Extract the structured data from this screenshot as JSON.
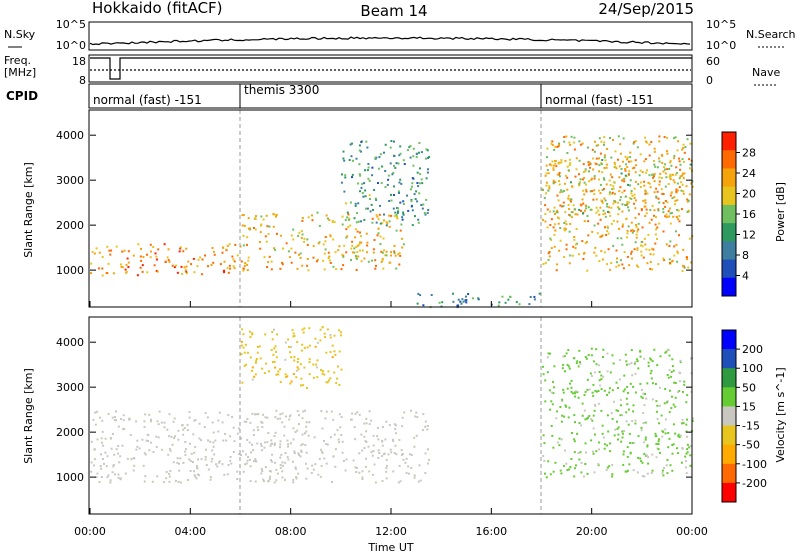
{
  "header": {
    "title": "Hokkaido (fitACF)",
    "beam": "Beam 14",
    "date": "24/Sep/2015"
  },
  "noise_panel": {
    "left_label": "N.Sky",
    "right_label": "N.Search",
    "left_ticks": [
      "10^5",
      "10^0"
    ],
    "right_ticks": [
      "10^5",
      "10^0"
    ]
  },
  "freq_panel": {
    "left_label_1": "Freq.",
    "left_label_2": "[MHz]",
    "right_label": "Nave",
    "left_ticks": [
      "18",
      "8"
    ],
    "right_ticks": [
      "60",
      "0"
    ]
  },
  "cpid_panel": {
    "label": "CPID",
    "modes": [
      {
        "name": "normal (fast) -151",
        "start_hour": 0,
        "end_hour": 6
      },
      {
        "name": "themis 3300",
        "start_hour": 6,
        "end_hour": 18
      },
      {
        "name": "normal (fast) -151",
        "start_hour": 18,
        "end_hour": 24
      }
    ]
  },
  "colors": {
    "power_scale": [
      "#0000ff",
      "#1f4fb8",
      "#3e7fa0",
      "#2f9a60",
      "#6fbf5f",
      "#e7c41e",
      "#f5a30a",
      "#ff6a00",
      "#ff2000"
    ],
    "velocity_scale": [
      "#ff0000",
      "#ff6a00",
      "#ffaa00",
      "#e7c41e",
      "#c8c8c0",
      "#66cc33",
      "#2f9a40",
      "#1f4fb8",
      "#0000ff"
    ],
    "ground_scatter": "#c8c8c0"
  },
  "chart_data": [
    {
      "type": "heatmap",
      "name": "power",
      "ylabel": "Slant Range [km]",
      "yticks": [
        "1000",
        "2000",
        "3000",
        "4000"
      ],
      "xlim": [
        0,
        24
      ],
      "ylim": [
        180,
        4560
      ],
      "colorbar": {
        "label": "Power [dB]",
        "ticks": [
          "4",
          "8",
          "12",
          "16",
          "20",
          "24",
          "28"
        ],
        "range": [
          0,
          32
        ]
      },
      "echo_bands": [
        {
          "start_hour": 0.0,
          "end_hour": 6.0,
          "range_km": [
            900,
            1600
          ],
          "level_db": 24
        },
        {
          "start_hour": 6.0,
          "end_hour": 12.5,
          "range_km": [
            1000,
            2300
          ],
          "level_db": 22
        },
        {
          "start_hour": 10.0,
          "end_hour": 13.5,
          "range_km": [
            2000,
            3900
          ],
          "level_db": 12
        },
        {
          "start_hour": 18.0,
          "end_hour": 24.0,
          "range_km": [
            1000,
            3500
          ],
          "level_db": 22
        },
        {
          "start_hour": 18.0,
          "end_hour": 24.0,
          "range_km": [
            2200,
            4000
          ],
          "level_db": 20
        },
        {
          "start_hour": 13.0,
          "end_hour": 18.0,
          "range_km": [
            200,
            500
          ],
          "level_db": 10
        }
      ]
    },
    {
      "type": "heatmap",
      "name": "velocity",
      "ylabel": "Slant Range [km]",
      "xlabel": "Time UT",
      "yticks": [
        "1000",
        "2000",
        "3000",
        "4000"
      ],
      "xticks": [
        "00:00",
        "04:00",
        "08:00",
        "12:00",
        "16:00",
        "20:00",
        "00:00"
      ],
      "xlim": [
        0,
        24
      ],
      "ylim": [
        180,
        4560
      ],
      "colorbar": {
        "label": "Velocity [m s^-1]",
        "ticks": [
          "200",
          "100",
          "50",
          "15",
          "-15",
          "-50",
          "-100",
          "-200"
        ]
      },
      "echo_bands": [
        {
          "start_hour": 0.0,
          "end_hour": 13.5,
          "range_km": [
            900,
            2500
          ],
          "type": "ground_scatter"
        },
        {
          "start_hour": 18.0,
          "end_hour": 24.0,
          "range_km": [
            1000,
            3900
          ],
          "velocity_ms": 40
        },
        {
          "start_hour": 6.0,
          "end_hour": 10.0,
          "range_km": [
            3000,
            4400
          ],
          "velocity_ms": -50
        }
      ]
    }
  ]
}
